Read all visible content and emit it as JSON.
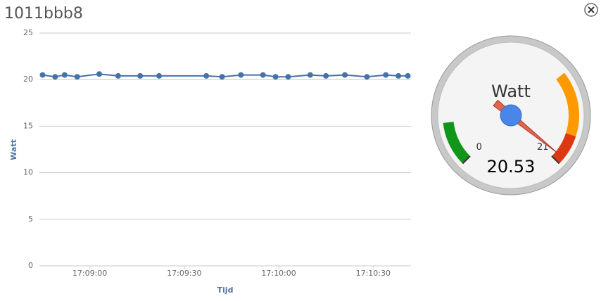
{
  "title": "1011bbb8",
  "chart_data": [
    {
      "type": "line",
      "y_label": "Watt",
      "x_label": "Tijd",
      "x": [
        "17:08:45",
        "17:08:49",
        "17:08:52",
        "17:08:56",
        "17:09:03",
        "17:09:09",
        "17:09:16",
        "17:09:22",
        "17:09:37",
        "17:09:42",
        "17:09:48",
        "17:09:55",
        "17:09:59",
        "17:10:03",
        "17:10:10",
        "17:10:15",
        "17:10:21",
        "17:10:28",
        "17:10:34",
        "17:10:38",
        "17:10:41"
      ],
      "series": [
        {
          "color": "#4572a7",
          "values": [
            20.5,
            20.3,
            20.5,
            20.3,
            20.6,
            20.4,
            20.4,
            20.4,
            20.4,
            20.3,
            20.5,
            20.5,
            20.3,
            20.3,
            20.5,
            20.4,
            20.5,
            20.3,
            20.5,
            20.4,
            20.4
          ]
        }
      ],
      "xlim": [
        "17:08:44",
        "17:10:42"
      ],
      "xticks": [
        "17:09:00",
        "17:09:30",
        "17:10:00",
        "17:10:30"
      ],
      "ylim": [
        0,
        25
      ],
      "yticks": [
        0,
        5,
        10,
        15,
        20,
        25
      ],
      "grid": true
    },
    {
      "type": "gauge",
      "title": "Watt",
      "value": 20.53,
      "ylim": [
        0,
        21
      ],
      "yticks": [
        0,
        21
      ],
      "bands": [
        {
          "from": 0,
          "to": 3,
          "color": "#109618"
        },
        {
          "from": 14.5,
          "to": 18.9,
          "color": "#ff9900"
        },
        {
          "from": 18.9,
          "to": 21,
          "color": "#dc3912"
        }
      ],
      "needle_color": "#e2674a",
      "hub_color": "#4a86e8"
    }
  ]
}
